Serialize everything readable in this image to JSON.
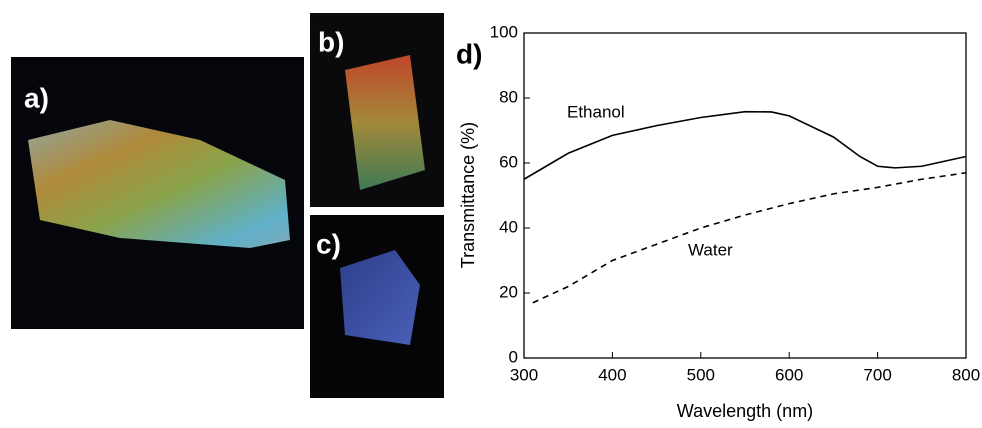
{
  "panel_labels": [
    "a)",
    "b)",
    "c)",
    "d)"
  ],
  "chart_data": {
    "type": "line",
    "xlabel": "Wavelength (nm)",
    "ylabel": "Transmittance (%)",
    "xlim": [
      300,
      800
    ],
    "xticks": [
      300,
      400,
      500,
      600,
      700,
      800
    ],
    "ylim": [
      0,
      100
    ],
    "yticks": [
      0,
      20,
      40,
      60,
      80,
      100
    ],
    "series": [
      {
        "name": "Ethanol",
        "color": "#000000",
        "style": "solid",
        "x": [
          300,
          350,
          400,
          450,
          500,
          550,
          580,
          600,
          650,
          680,
          700,
          720,
          750,
          800
        ],
        "values": [
          55,
          63,
          68.5,
          71.5,
          74,
          75.8,
          75.7,
          74.5,
          68,
          62,
          59,
          58.5,
          59,
          62
        ]
      },
      {
        "name": "Water",
        "color": "#000000",
        "style": "dashed",
        "x": [
          310,
          350,
          400,
          450,
          500,
          550,
          600,
          650,
          700,
          750,
          800
        ],
        "values": [
          17,
          22,
          30,
          35,
          40,
          44,
          47.5,
          50.5,
          52.5,
          55,
          57
        ]
      }
    ]
  }
}
